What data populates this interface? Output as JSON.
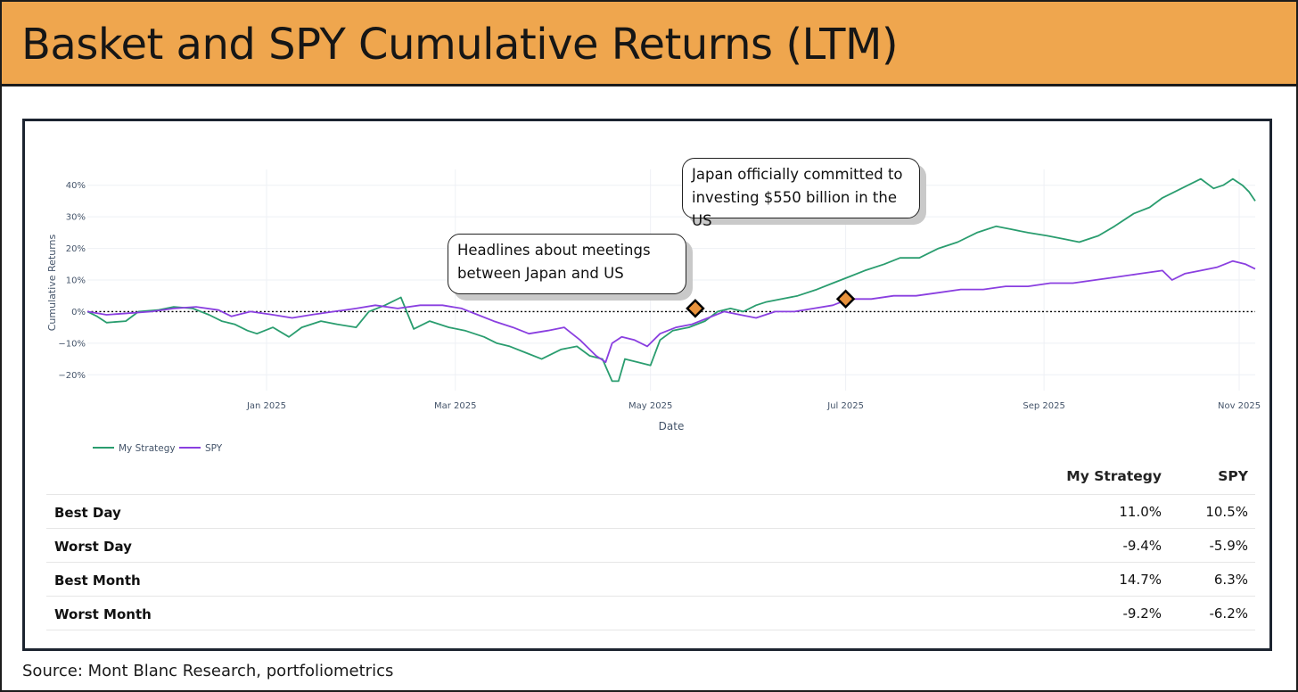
{
  "title": "Basket and SPY Cumulative Returns (LTM)",
  "source": "Source: Mont Blanc Research, portfoliometrics",
  "annotations": {
    "meetings": {
      "line1": "Headlines about meetings",
      "line2": "between Japan and US",
      "date": "2025-05-15",
      "value": 1.0
    },
    "commitment": {
      "line1": "Japan officially committed to",
      "line2": "investing $550 billion in the US",
      "date": "2025-07-01",
      "value": 4.0
    }
  },
  "stats": {
    "columns": [
      "My Strategy",
      "SPY"
    ],
    "rows": [
      {
        "label": "Best Day",
        "my_strategy": "11.0%",
        "spy": "10.5%"
      },
      {
        "label": "Worst Day",
        "my_strategy": "-9.4%",
        "spy": "-5.9%"
      },
      {
        "label": "Best Month",
        "my_strategy": "14.7%",
        "spy": "6.3%"
      },
      {
        "label": "Worst Month",
        "my_strategy": "-9.2%",
        "spy": "-6.2%"
      }
    ]
  },
  "chart_data": {
    "type": "line",
    "xlabel": "Date",
    "ylabel": "Cumulative Returns",
    "x_range": [
      "2024-11-06",
      "2025-11-06"
    ],
    "ylim": [
      -25,
      45
    ],
    "x_ticks": [
      {
        "date": "2025-01-01",
        "label": "Jan 2025"
      },
      {
        "date": "2025-03-01",
        "label": "Mar 2025"
      },
      {
        "date": "2025-05-01",
        "label": "May 2025"
      },
      {
        "date": "2025-07-01",
        "label": "Jul 2025"
      },
      {
        "date": "2025-09-01",
        "label": "Sep 2025"
      },
      {
        "date": "2025-11-01",
        "label": "Nov 2025"
      }
    ],
    "y_ticks": [
      {
        "value": -20,
        "label": "−20%"
      },
      {
        "value": -10,
        "label": "−10%"
      },
      {
        "value": 0,
        "label": "0%"
      },
      {
        "value": 10,
        "label": "10%"
      },
      {
        "value": 20,
        "label": "20%"
      },
      {
        "value": 30,
        "label": "30%"
      },
      {
        "value": 40,
        "label": "40%"
      }
    ],
    "zero_line": "dotted",
    "grid": true,
    "legend_position": "bottom-left",
    "series": [
      {
        "name": "My Strategy",
        "color": "#2a9d6f",
        "points": [
          [
            "2024-11-06",
            0
          ],
          [
            "2024-11-09",
            -1.5
          ],
          [
            "2024-11-12",
            -3.5
          ],
          [
            "2024-11-18",
            -3
          ],
          [
            "2024-11-22",
            0
          ],
          [
            "2024-11-28",
            0.5
          ],
          [
            "2024-12-03",
            1.5
          ],
          [
            "2024-12-09",
            1
          ],
          [
            "2024-12-14",
            -1
          ],
          [
            "2024-12-18",
            -3
          ],
          [
            "2024-12-22",
            -4
          ],
          [
            "2024-12-26",
            -6
          ],
          [
            "2024-12-29",
            -7
          ],
          [
            "2025-01-03",
            -5
          ],
          [
            "2025-01-08",
            -8
          ],
          [
            "2025-01-12",
            -5
          ],
          [
            "2025-01-18",
            -3
          ],
          [
            "2025-01-23",
            -4
          ],
          [
            "2025-01-29",
            -5
          ],
          [
            "2025-02-02",
            0
          ],
          [
            "2025-02-07",
            2
          ],
          [
            "2025-02-12",
            4.5
          ],
          [
            "2025-02-16",
            -5.5
          ],
          [
            "2025-02-21",
            -3
          ],
          [
            "2025-02-27",
            -5
          ],
          [
            "2025-03-04",
            -6
          ],
          [
            "2025-03-10",
            -8
          ],
          [
            "2025-03-14",
            -10
          ],
          [
            "2025-03-18",
            -11
          ],
          [
            "2025-03-23",
            -13
          ],
          [
            "2025-03-28",
            -15
          ],
          [
            "2025-04-03",
            -12
          ],
          [
            "2025-04-08",
            -11
          ],
          [
            "2025-04-12",
            -14
          ],
          [
            "2025-04-16",
            -15
          ],
          [
            "2025-04-19",
            -22
          ],
          [
            "2025-04-21",
            -22
          ],
          [
            "2025-04-23",
            -15
          ],
          [
            "2025-04-27",
            -16
          ],
          [
            "2025-05-01",
            -17
          ],
          [
            "2025-05-04",
            -9
          ],
          [
            "2025-05-08",
            -6
          ],
          [
            "2025-05-13",
            -5
          ],
          [
            "2025-05-18",
            -3
          ],
          [
            "2025-05-22",
            0
          ],
          [
            "2025-05-26",
            1
          ],
          [
            "2025-05-30",
            0
          ],
          [
            "2025-06-03",
            2
          ],
          [
            "2025-06-06",
            3
          ],
          [
            "2025-06-11",
            4
          ],
          [
            "2025-06-16",
            5
          ],
          [
            "2025-06-22",
            7
          ],
          [
            "2025-06-27",
            9
          ],
          [
            "2025-07-02",
            11
          ],
          [
            "2025-07-07",
            13
          ],
          [
            "2025-07-13",
            15
          ],
          [
            "2025-07-18",
            17
          ],
          [
            "2025-07-24",
            17
          ],
          [
            "2025-07-30",
            20
          ],
          [
            "2025-08-05",
            22
          ],
          [
            "2025-08-11",
            25
          ],
          [
            "2025-08-17",
            27
          ],
          [
            "2025-08-22",
            26
          ],
          [
            "2025-08-27",
            25
          ],
          [
            "2025-09-02",
            24
          ],
          [
            "2025-09-07",
            23
          ],
          [
            "2025-09-12",
            22
          ],
          [
            "2025-09-18",
            24
          ],
          [
            "2025-09-23",
            27
          ],
          [
            "2025-09-29",
            31
          ],
          [
            "2025-10-04",
            33
          ],
          [
            "2025-10-08",
            36
          ],
          [
            "2025-10-12",
            38
          ],
          [
            "2025-10-16",
            40
          ],
          [
            "2025-10-20",
            42
          ],
          [
            "2025-10-24",
            39
          ],
          [
            "2025-10-27",
            40
          ],
          [
            "2025-10-30",
            42
          ],
          [
            "2025-11-02",
            40
          ],
          [
            "2025-11-04",
            38
          ],
          [
            "2025-11-06",
            35
          ]
        ]
      },
      {
        "name": "SPY",
        "color": "#8a3fe0",
        "points": [
          [
            "2024-11-06",
            0
          ],
          [
            "2024-11-12",
            -1
          ],
          [
            "2024-11-19",
            -0.5
          ],
          [
            "2024-11-26",
            0
          ],
          [
            "2024-12-03",
            1
          ],
          [
            "2024-12-10",
            1.5
          ],
          [
            "2024-12-17",
            0.5
          ],
          [
            "2024-12-21",
            -1.5
          ],
          [
            "2024-12-27",
            0
          ],
          [
            "2025-01-03",
            -1
          ],
          [
            "2025-01-09",
            -2
          ],
          [
            "2025-01-15",
            -1
          ],
          [
            "2025-01-22",
            0
          ],
          [
            "2025-01-29",
            1
          ],
          [
            "2025-02-04",
            2
          ],
          [
            "2025-02-11",
            1
          ],
          [
            "2025-02-18",
            2
          ],
          [
            "2025-02-25",
            2
          ],
          [
            "2025-03-03",
            1
          ],
          [
            "2025-03-08",
            -1
          ],
          [
            "2025-03-13",
            -3
          ],
          [
            "2025-03-19",
            -5
          ],
          [
            "2025-03-24",
            -7
          ],
          [
            "2025-03-30",
            -6
          ],
          [
            "2025-04-04",
            -5
          ],
          [
            "2025-04-09",
            -9
          ],
          [
            "2025-04-14",
            -14
          ],
          [
            "2025-04-17",
            -16
          ],
          [
            "2025-04-19",
            -10
          ],
          [
            "2025-04-22",
            -8
          ],
          [
            "2025-04-26",
            -9
          ],
          [
            "2025-04-30",
            -11
          ],
          [
            "2025-05-04",
            -7
          ],
          [
            "2025-05-09",
            -5
          ],
          [
            "2025-05-14",
            -4
          ],
          [
            "2025-05-19",
            -2
          ],
          [
            "2025-05-24",
            0
          ],
          [
            "2025-05-29",
            -1
          ],
          [
            "2025-06-03",
            -2
          ],
          [
            "2025-06-09",
            0
          ],
          [
            "2025-06-15",
            0
          ],
          [
            "2025-06-21",
            1
          ],
          [
            "2025-06-27",
            2
          ],
          [
            "2025-07-02",
            4
          ],
          [
            "2025-07-09",
            4
          ],
          [
            "2025-07-16",
            5
          ],
          [
            "2025-07-23",
            5
          ],
          [
            "2025-07-30",
            6
          ],
          [
            "2025-08-06",
            7
          ],
          [
            "2025-08-13",
            7
          ],
          [
            "2025-08-20",
            8
          ],
          [
            "2025-08-27",
            8
          ],
          [
            "2025-09-03",
            9
          ],
          [
            "2025-09-10",
            9
          ],
          [
            "2025-09-17",
            10
          ],
          [
            "2025-09-24",
            11
          ],
          [
            "2025-10-01",
            12
          ],
          [
            "2025-10-08",
            13
          ],
          [
            "2025-10-11",
            10
          ],
          [
            "2025-10-15",
            12
          ],
          [
            "2025-10-20",
            13
          ],
          [
            "2025-10-25",
            14
          ],
          [
            "2025-10-30",
            16
          ],
          [
            "2025-11-03",
            15
          ],
          [
            "2025-11-06",
            13.5
          ]
        ]
      }
    ]
  }
}
